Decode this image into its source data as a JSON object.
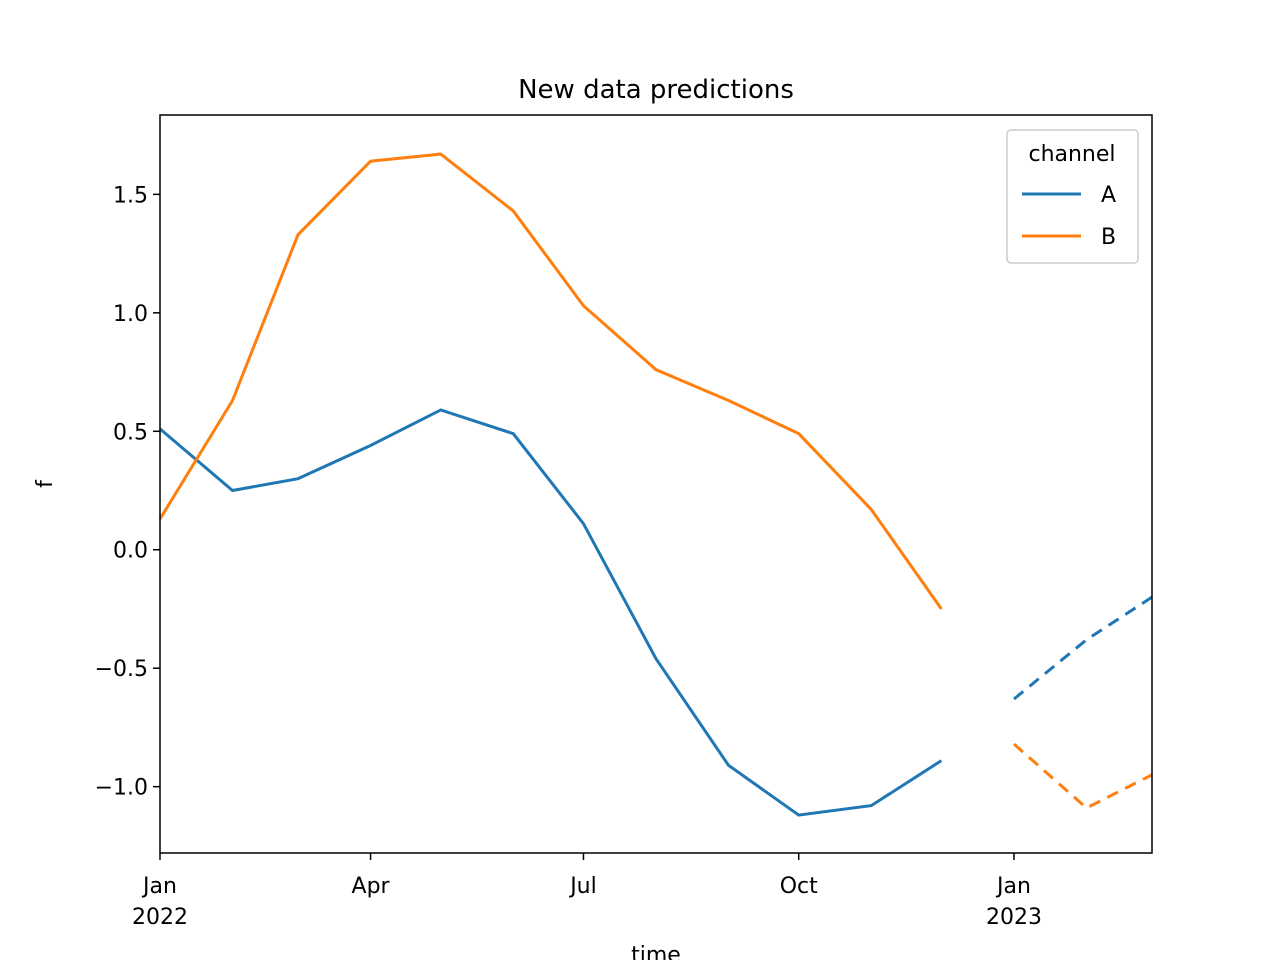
{
  "chart_data": {
    "type": "line",
    "title": "New data predictions",
    "x_label": "time",
    "y_label": "f",
    "x": [
      "2022-01",
      "2022-02",
      "2022-03",
      "2022-04",
      "2022-05",
      "2022-06",
      "2022-07",
      "2022-08",
      "2022-09",
      "2022-10",
      "2022-11",
      "2022-12",
      "2023-01",
      "2023-02",
      "2023-03"
    ],
    "xlim": [
      "2022-01",
      "2023-03"
    ],
    "xticks": [
      {
        "value": "2022-01",
        "label": "Jan\n2022"
      },
      {
        "value": "2022-04",
        "label": "Apr"
      },
      {
        "value": "2022-07",
        "label": "Jul"
      },
      {
        "value": "2022-10",
        "label": "Oct"
      },
      {
        "value": "2023-01",
        "label": "Jan\n2023"
      }
    ],
    "ylim": [
      -1.28,
      1.835
    ],
    "yticks": [
      {
        "value": -1.0,
        "label": "−1.0"
      },
      {
        "value": -0.5,
        "label": "−0.5"
      },
      {
        "value": 0.0,
        "label": "0.0"
      },
      {
        "value": 0.5,
        "label": "0.5"
      },
      {
        "value": 1.0,
        "label": "1.0"
      },
      {
        "value": 1.5,
        "label": "1.5"
      }
    ],
    "grid": false,
    "legend_title": "channel",
    "legend_position": "upper right",
    "series": [
      {
        "name": "A",
        "color": "#1f77b4",
        "values": [
          0.51,
          0.25,
          0.3,
          0.44,
          0.59,
          0.49,
          0.11,
          -0.46,
          -0.91,
          -1.12,
          -1.08,
          -0.89,
          null,
          null,
          null
        ],
        "forecast": [
          null,
          null,
          null,
          null,
          null,
          null,
          null,
          null,
          null,
          null,
          null,
          null,
          -0.63,
          -0.38,
          -0.2
        ]
      },
      {
        "name": "B",
        "color": "#ff7f0e",
        "values": [
          0.13,
          0.63,
          1.33,
          1.64,
          1.67,
          1.43,
          1.03,
          0.76,
          0.63,
          0.49,
          0.17,
          -0.25,
          null,
          null,
          null
        ],
        "forecast": [
          null,
          null,
          null,
          null,
          null,
          null,
          null,
          null,
          null,
          null,
          null,
          null,
          -0.82,
          -1.09,
          -0.95
        ]
      }
    ]
  }
}
